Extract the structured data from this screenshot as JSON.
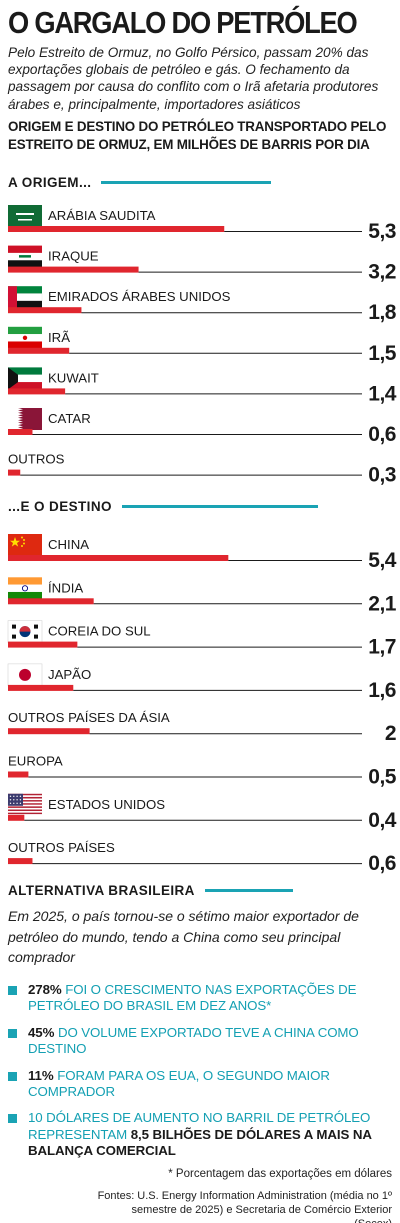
{
  "header": {
    "title": "O GARGALO DO PETRÓLEO",
    "lead": "Pelo Estreito de Ormuz, no Golfo Pérsico, passam 20% das exportações globais de petróleo e gás. O fechamento da passagem por causa do conflito com o Irã afetaria produtores árabes e, principalmente, importadores asiáticos",
    "subtitle": "ORIGEM E DESTINO DO PETRÓLEO TRANSPORTADO PELO ESTREITO DE ORMUZ, EM MILHÕES DE BARRIS POR DIA"
  },
  "colors": {
    "bar": "#e0262e",
    "accent": "#1aa3b4",
    "divider": "#1a1a1a"
  },
  "chart_data": [
    {
      "type": "bar",
      "title": "A ORIGEM...",
      "categories": [
        "ARÁBIA SAUDITA",
        "IRAQUE",
        "EMIRADOS ÁRABES UNIDOS",
        "IRÃ",
        "KUWAIT",
        "CATAR",
        "OUTROS"
      ],
      "values": [
        5.3,
        3.2,
        1.8,
        1.5,
        1.4,
        0.6,
        0.3
      ],
      "value_labels": [
        "5,3",
        "3,2",
        "1,8",
        "1,5",
        "1,4",
        "0,6",
        "0,3"
      ],
      "flags": [
        "flag-saudi-arabia",
        "flag-iraq",
        "flag-uae",
        "flag-iran",
        "flag-kuwait",
        "flag-qatar",
        ""
      ],
      "xlabel": "",
      "ylabel": ""
    },
    {
      "type": "bar",
      "title": "...E O DESTINO",
      "categories": [
        "CHINA",
        "ÍNDIA",
        "COREIA DO SUL",
        "JAPÃO",
        "OUTROS PAÍSES DA ÁSIA",
        "EUROPA",
        "ESTADOS UNIDOS",
        "OUTROS PAÍSES"
      ],
      "values": [
        5.4,
        2.1,
        1.7,
        1.6,
        2,
        0.5,
        0.4,
        0.6
      ],
      "value_labels": [
        "5,4",
        "2,1",
        "1,7",
        "1,6",
        "2",
        "0,5",
        "0,4",
        "0,6"
      ],
      "flags": [
        "flag-china",
        "flag-india",
        "flag-south-korea",
        "flag-japan",
        "",
        "",
        "flag-usa",
        ""
      ],
      "xlabel": "",
      "ylabel": ""
    }
  ],
  "alternative": {
    "heading": "ALTERNATIVA BRASILEIRA",
    "text": "Em 2025, o país tornou-se o sétimo maior exportador de petróleo do mundo, tendo a China como seu principal comprador",
    "facts": [
      {
        "highlight": "278%",
        "text": "FOI O CRESCIMENTO NAS EXPORTAÇÕES DE PETRÓLEO DO BRASIL EM DEZ ANOS*",
        "highlight_after": ""
      },
      {
        "highlight": "45%",
        "text": "DO VOLUME EXPORTADO TEVE A CHINA COMO DESTINO",
        "highlight_after": ""
      },
      {
        "highlight": "11%",
        "text": "FORAM PARA OS EUA, O SEGUNDO MAIOR COMPRADOR",
        "highlight_after": ""
      },
      {
        "highlight": "",
        "text": "10 DÓLARES DE AUMENTO NO BARRIL DE PETRÓLEO REPRESENTAM",
        "highlight_after": "8,5 BILHÕES DE DÓLARES A MAIS NA BALANÇA COMERCIAL"
      }
    ]
  },
  "footer": {
    "note": "* Porcentagem das exportações em dólares",
    "sources": "Fontes: U.S. Energy Information Administration (média no 1º semestre de 2025) e Secretaria de Comércio Exterior (Secex)"
  }
}
